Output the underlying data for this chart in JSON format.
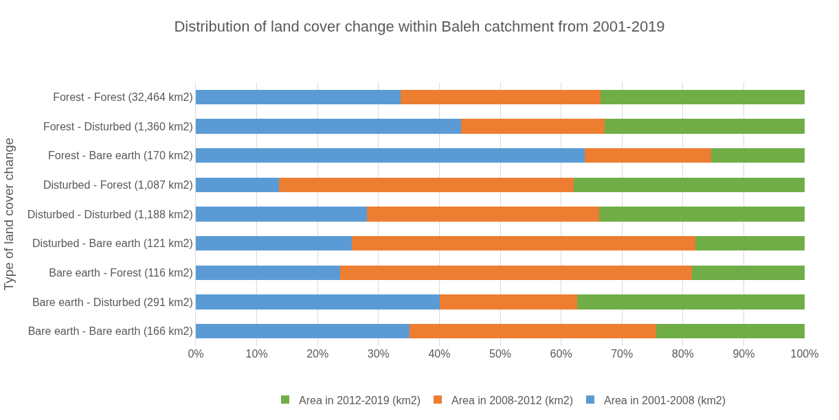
{
  "chart_data": {
    "type": "bar",
    "orientation": "horizontal",
    "stacked": true,
    "title": "Distribution of land cover change within Baleh catchment from 2001-2019",
    "ylabel": "Type of land cover change",
    "categories": [
      "Forest - Forest (32,464 km2)",
      "Forest - Disturbed (1,360 km2)",
      "Forest - Bare earth (170 km2)",
      "Disturbed - Forest (1,087 km2)",
      "Disturbed - Disturbed (1,188 km2)",
      "Disturbed - Bare earth (121 km2)",
      "Bare earth - Forest (116 km2)",
      "Bare earth - Disturbed (291 km2)",
      "Bare earth - Bare earth (166 km2)"
    ],
    "series": [
      {
        "name": "Area in 2001-2008 (km2)",
        "color": "#5b9bd5",
        "values": [
          33.6,
          43.6,
          63.9,
          13.6,
          28.1,
          25.6,
          23.7,
          40.1,
          35.1
        ]
      },
      {
        "name": "Area in 2008-2012 (km2)",
        "color": "#ed7d31",
        "values": [
          32.9,
          23.5,
          20.8,
          48.5,
          38.1,
          56.5,
          57.8,
          22.5,
          40.5
        ]
      },
      {
        "name": "Area in 2012-2019 (km2)",
        "color": "#70ad47",
        "values": [
          33.5,
          32.9,
          15.3,
          37.9,
          33.8,
          17.9,
          18.5,
          37.4,
          24.4
        ]
      }
    ],
    "xlim": [
      0,
      100
    ],
    "xticks": [
      {
        "value": 0,
        "label": "0%"
      },
      {
        "value": 10,
        "label": "10%"
      },
      {
        "value": 20,
        "label": "20%"
      },
      {
        "value": 30,
        "label": "30%"
      },
      {
        "value": 40,
        "label": "40%"
      },
      {
        "value": 50,
        "label": "50%"
      },
      {
        "value": 60,
        "label": "60%"
      },
      {
        "value": 70,
        "label": "70%"
      },
      {
        "value": 80,
        "label": "80%"
      },
      {
        "value": 90,
        "label": "90%"
      },
      {
        "value": 100,
        "label": "100%"
      }
    ],
    "grid": "x",
    "legend": "bottom"
  }
}
